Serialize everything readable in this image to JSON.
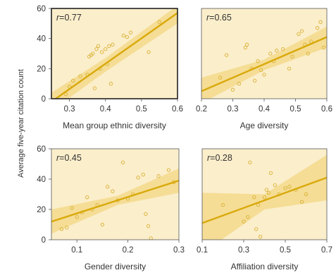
{
  "ylabel": "Average five-year citation count",
  "colors": {
    "panel_bg": "#fbeecb",
    "band": "#f3d98c",
    "line": "#d9a90b",
    "point": "#d9b133",
    "frame": "#555555",
    "frame_highlight": "#222222"
  },
  "chart_data": [
    {
      "type": "scatter",
      "xlabel": "Mean group ethnic diversity",
      "annotation": {
        "r_symbol": "r",
        "r_value": "=0.77"
      },
      "highlighted": true,
      "xlim": [
        0.25,
        0.6
      ],
      "ylim": [
        0,
        60
      ],
      "xticks": [
        "0.3",
        "0.4",
        "0.5",
        "0.6"
      ],
      "yticks": [
        "0",
        "20",
        "40",
        "60"
      ],
      "regression": {
        "x": [
          0.25,
          0.6
        ],
        "y": [
          -2,
          57
        ]
      },
      "band": {
        "x": [
          0.25,
          0.4,
          0.6
        ],
        "upper": [
          4,
          27,
          62
        ],
        "lower": [
          -8,
          18,
          50
        ]
      },
      "points": [
        {
          "x": 0.29,
          "y": 3
        },
        {
          "x": 0.3,
          "y": 8
        },
        {
          "x": 0.31,
          "y": 12
        },
        {
          "x": 0.33,
          "y": 15
        },
        {
          "x": 0.35,
          "y": 16
        },
        {
          "x": 0.355,
          "y": 28
        },
        {
          "x": 0.36,
          "y": 29
        },
        {
          "x": 0.365,
          "y": 30
        },
        {
          "x": 0.37,
          "y": 7
        },
        {
          "x": 0.375,
          "y": 33
        },
        {
          "x": 0.38,
          "y": 35
        },
        {
          "x": 0.385,
          "y": 20
        },
        {
          "x": 0.39,
          "y": 31
        },
        {
          "x": 0.4,
          "y": 33
        },
        {
          "x": 0.405,
          "y": 23
        },
        {
          "x": 0.41,
          "y": 35
        },
        {
          "x": 0.415,
          "y": 10
        },
        {
          "x": 0.42,
          "y": 36
        },
        {
          "x": 0.45,
          "y": 42
        },
        {
          "x": 0.46,
          "y": 41
        },
        {
          "x": 0.47,
          "y": 44
        },
        {
          "x": 0.52,
          "y": 31
        },
        {
          "x": 0.55,
          "y": 51
        }
      ]
    },
    {
      "type": "scatter",
      "xlabel": "Age diversity",
      "annotation": {
        "r_symbol": "r",
        "r_value": "=0.65"
      },
      "highlighted": false,
      "xlim": [
        0.2,
        0.6
      ],
      "ylim": [
        0,
        60
      ],
      "xticks": [
        "0.2",
        "0.3",
        "0.4",
        "0.5",
        "0.6"
      ],
      "yticks": [],
      "regression": {
        "x": [
          0.2,
          0.6
        ],
        "y": [
          5,
          41
        ]
      },
      "band": {
        "x": [
          0.2,
          0.4,
          0.6
        ],
        "upper": [
          14,
          26,
          48
        ],
        "lower": [
          -3,
          19,
          34
        ]
      },
      "points": [
        {
          "x": 0.26,
          "y": 14
        },
        {
          "x": 0.28,
          "y": 29
        },
        {
          "x": 0.3,
          "y": 6
        },
        {
          "x": 0.32,
          "y": 10
        },
        {
          "x": 0.34,
          "y": 34
        },
        {
          "x": 0.345,
          "y": 36
        },
        {
          "x": 0.36,
          "y": 20
        },
        {
          "x": 0.37,
          "y": 12
        },
        {
          "x": 0.38,
          "y": 25
        },
        {
          "x": 0.39,
          "y": 19
        },
        {
          "x": 0.4,
          "y": 16
        },
        {
          "x": 0.42,
          "y": 30
        },
        {
          "x": 0.43,
          "y": 25
        },
        {
          "x": 0.44,
          "y": 32
        },
        {
          "x": 0.46,
          "y": 33
        },
        {
          "x": 0.48,
          "y": 20
        },
        {
          "x": 0.49,
          "y": 28
        },
        {
          "x": 0.51,
          "y": 43
        },
        {
          "x": 0.52,
          "y": 45
        },
        {
          "x": 0.53,
          "y": 36
        },
        {
          "x": 0.54,
          "y": 30
        },
        {
          "x": 0.55,
          "y": 38
        },
        {
          "x": 0.57,
          "y": 47
        },
        {
          "x": 0.58,
          "y": 51
        },
        {
          "x": 0.59,
          "y": 34
        }
      ]
    },
    {
      "type": "scatter",
      "xlabel": "Gender diversity",
      "annotation": {
        "r_symbol": "r",
        "r_value": "=0.45"
      },
      "highlighted": false,
      "xlim": [
        0.05,
        0.3
      ],
      "ylim": [
        0,
        60
      ],
      "xticks": [
        "0.1",
        "0.2",
        "0.3"
      ],
      "yticks": [
        "0",
        "20",
        "40",
        "60"
      ],
      "regression": {
        "x": [
          0.05,
          0.3
        ],
        "y": [
          12,
          39
        ]
      },
      "band": {
        "x": [
          0.05,
          0.18,
          0.3
        ],
        "upper": [
          20,
          29,
          47
        ],
        "lower": [
          4,
          23,
          31
        ]
      },
      "points": [
        {
          "x": 0.07,
          "y": 7
        },
        {
          "x": 0.08,
          "y": 8
        },
        {
          "x": 0.09,
          "y": 21
        },
        {
          "x": 0.1,
          "y": 15
        },
        {
          "x": 0.11,
          "y": 18
        },
        {
          "x": 0.12,
          "y": 28
        },
        {
          "x": 0.13,
          "y": 20
        },
        {
          "x": 0.14,
          "y": 23
        },
        {
          "x": 0.15,
          "y": 10
        },
        {
          "x": 0.16,
          "y": 35
        },
        {
          "x": 0.17,
          "y": 32
        },
        {
          "x": 0.18,
          "y": 26
        },
        {
          "x": 0.19,
          "y": 51
        },
        {
          "x": 0.2,
          "y": 27
        },
        {
          "x": 0.21,
          "y": 30
        },
        {
          "x": 0.22,
          "y": 41
        },
        {
          "x": 0.23,
          "y": 43
        },
        {
          "x": 0.235,
          "y": 17
        },
        {
          "x": 0.24,
          "y": 9
        },
        {
          "x": 0.245,
          "y": 1
        },
        {
          "x": 0.26,
          "y": 42
        },
        {
          "x": 0.28,
          "y": 46
        },
        {
          "x": 0.29,
          "y": 38
        }
      ]
    },
    {
      "type": "scatter",
      "xlabel": "Affiliation diversity",
      "annotation": {
        "r_symbol": "r",
        "r_value": "=0.28"
      },
      "highlighted": false,
      "xlim": [
        0.1,
        0.7
      ],
      "ylim": [
        0,
        60
      ],
      "xticks": [
        "0.1",
        "0.3",
        "0.5",
        "0.7"
      ],
      "yticks": [],
      "regression": {
        "x": [
          0.1,
          0.7
        ],
        "y": [
          11,
          41
        ]
      },
      "band": {
        "x": [
          0.1,
          0.4,
          0.7
        ],
        "upper": [
          31,
          30,
          56
        ],
        "lower": [
          -9,
          20,
          26
        ]
      },
      "points": [
        {
          "x": 0.2,
          "y": 23
        },
        {
          "x": 0.3,
          "y": 12
        },
        {
          "x": 0.32,
          "y": 15
        },
        {
          "x": 0.33,
          "y": 51
        },
        {
          "x": 0.35,
          "y": 28
        },
        {
          "x": 0.36,
          "y": 7
        },
        {
          "x": 0.37,
          "y": 23
        },
        {
          "x": 0.38,
          "y": 2
        },
        {
          "x": 0.4,
          "y": 28
        },
        {
          "x": 0.41,
          "y": 33
        },
        {
          "x": 0.42,
          "y": 31
        },
        {
          "x": 0.43,
          "y": 44
        },
        {
          "x": 0.45,
          "y": 36
        },
        {
          "x": 0.47,
          "y": 30
        },
        {
          "x": 0.5,
          "y": 34
        },
        {
          "x": 0.52,
          "y": 35
        },
        {
          "x": 0.55,
          "y": 33
        },
        {
          "x": 0.58,
          "y": 25
        },
        {
          "x": 0.6,
          "y": 30
        }
      ]
    }
  ]
}
